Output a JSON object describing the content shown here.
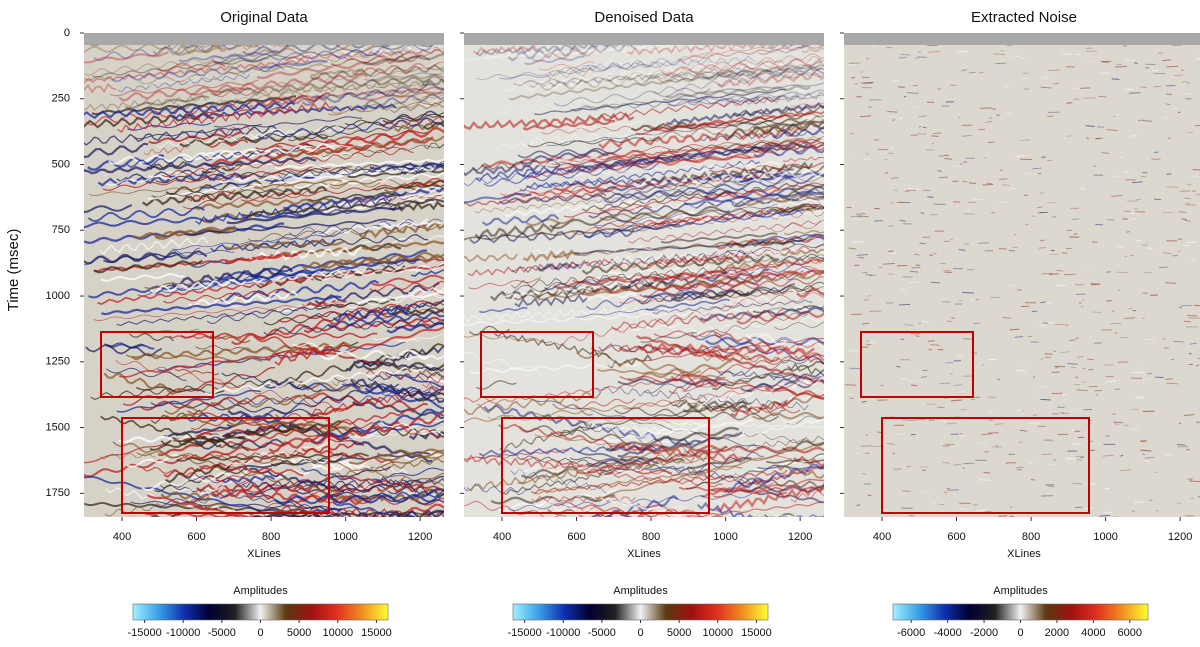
{
  "chart_data": [
    {
      "type": "seismic",
      "title": "Original Data",
      "xlabel": "XLines",
      "ylabel": "Time (msec)",
      "xlim": [
        298,
        1264
      ],
      "xticks": [
        400,
        600,
        800,
        1000,
        1200
      ],
      "ylim": [
        0,
        1840
      ],
      "yticks": [
        0,
        250,
        500,
        750,
        1000,
        1250,
        1500,
        1750
      ],
      "colorbar": {
        "label": "Amplitudes",
        "lim": [
          -16500,
          16500
        ],
        "ticks": [
          -15000,
          -10000,
          -5000,
          0,
          5000,
          10000,
          15000
        ],
        "colors": [
          "#9ff0ff",
          "#3aa0e8",
          "#1030b0",
          "#000030",
          "#202020",
          "#f2f2f2",
          "#5a3a10",
          "#a01010",
          "#e03020",
          "#f09020",
          "#ffff30"
        ]
      }
    },
    {
      "type": "seismic",
      "title": "Denoised Data",
      "xlabel": "XLines",
      "xlim": [
        298,
        1264
      ],
      "xticks": [
        400,
        600,
        800,
        1000,
        1200
      ],
      "colorbar": {
        "label": "Amplitudes",
        "lim": [
          -16500,
          16500
        ],
        "ticks": [
          -15000,
          -10000,
          -5000,
          0,
          5000,
          10000,
          15000
        ],
        "colors": [
          "#9ff0ff",
          "#3aa0e8",
          "#1030b0",
          "#000030",
          "#202020",
          "#f2f2f2",
          "#5a3a10",
          "#a01010",
          "#e03020",
          "#f09020",
          "#ffff30"
        ]
      }
    },
    {
      "type": "noise",
      "title": "Extracted Noise",
      "xlabel": "XLines",
      "xlim": [
        298,
        1264
      ],
      "xticks": [
        400,
        600,
        800,
        1000,
        1200
      ],
      "colorbar": {
        "label": "Amplitudes",
        "lim": [
          -7000,
          7000
        ],
        "ticks": [
          -6000,
          -4000,
          -2000,
          0,
          2000,
          4000,
          6000
        ],
        "colors": [
          "#9ff0ff",
          "#3aa0e8",
          "#1030b0",
          "#000030",
          "#202020",
          "#f2f2f2",
          "#5a3a10",
          "#a01010",
          "#e03020",
          "#f09020",
          "#ffff30"
        ]
      }
    }
  ]
}
